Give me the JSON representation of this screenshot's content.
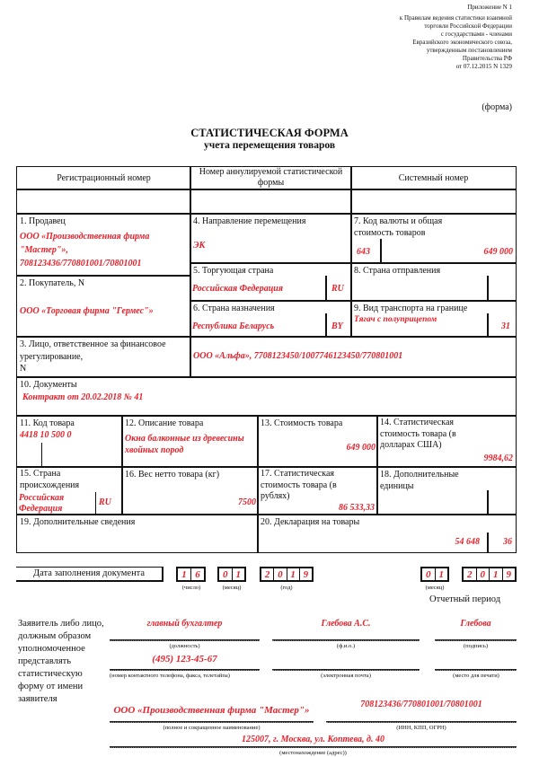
{
  "header": {
    "lines": [
      "Приложение N 1",
      "к Правилам ведения статистики взаимной",
      "торговли Российской Федерации",
      "с государствами - членами",
      "Евразийского экономического союза,",
      "утвержденным постановлением",
      "Правительства РФ",
      "от 07.12.2015 N 1329"
    ],
    "form_label": "(форма)"
  },
  "title": "СТАТИСТИЧЕСКАЯ ФОРМА",
  "subtitle": "учета перемещения товаров",
  "table": {
    "reg_number": "Регистрационный номер",
    "annul_number": "Номер аннулируемой статистической формы",
    "system_number": "Системный номер",
    "f1": {
      "label": "1. Продавец",
      "value": "ООО «Производственная фирма \"Мастер\"», 708123436/770801001/70801001"
    },
    "f2": {
      "label": "2. Покупатель, N",
      "value": "ООО «Торговая фирма \"Гермес\"»"
    },
    "f3": {
      "label": "3. Лицо, ответственное за финансовое урегулирование,",
      "label2": "N",
      "value": "ООО «Альфа», 7708123450/1007746123450/770801001"
    },
    "f4": {
      "label": "4. Направление перемещения",
      "value": "ЭК"
    },
    "f5": {
      "label": "5. Торгующая страна",
      "value": "Российская Федерация",
      "code": "RU"
    },
    "f6": {
      "label": "6. Страна назначения",
      "value": "Республика Беларусь",
      "code": "BY"
    },
    "f7": {
      "label": "7. Код валюты и общая стоимость товаров",
      "currency": "643",
      "value": "649 000"
    },
    "f8": {
      "label": "8. Страна отправления"
    },
    "f9": {
      "label": "9. Вид транспорта на границе",
      "value": "Тягач с полуприцепом",
      "code": "31"
    },
    "f10": {
      "label": "10. Документы",
      "value": "Контракт от 20.02.2018 № 41"
    },
    "f11": {
      "label": "11. Код товара",
      "value": "4418 10 500 0"
    },
    "f12": {
      "label": "12. Описание товара",
      "value": "Окна балконные из древесины хвойных пород"
    },
    "f13": {
      "label": "13. Стоимость товара",
      "value": "649 000"
    },
    "f14": {
      "label": "14. Статистическая стоимость товара (в долларах США)",
      "value": "9984,62"
    },
    "f15": {
      "label": "15. Страна происхождения",
      "value": "Российская Федерация",
      "code": "RU"
    },
    "f16": {
      "label": "16. Вес нетто товара (кг)",
      "value": "7500"
    },
    "f17": {
      "label": "17. Статистическая стоимость товара (в рублях)",
      "value": "86 533,33"
    },
    "f18": {
      "label": "18. Дополнительные единицы"
    },
    "f19": {
      "label": "19. Дополнительные сведения"
    },
    "f20": {
      "label": "20. Декларация на товары",
      "value": "54 648",
      "code": "36"
    }
  },
  "date": {
    "label": "Дата заполнения документа",
    "day": [
      "1",
      "6"
    ],
    "month": [
      "0",
      "1"
    ],
    "year": [
      "2",
      "0",
      "1",
      "9"
    ],
    "day_caption": "(число)",
    "month_caption": "(месяц)",
    "year_caption": "(год)"
  },
  "period": {
    "month": [
      "0",
      "1"
    ],
    "year": [
      "2",
      "0",
      "1",
      "9"
    ],
    "month_caption": "(месяц)",
    "label": "Отчетный период"
  },
  "applicant": {
    "label": "Заявитель либо лицо, должным образом уполномоченное представлять статистическую форму от имени заявителя",
    "position": "главный бухгалтер",
    "position_caption": "(должность)",
    "name": "Глебова А.С.",
    "name_caption": "(ф.и.о.)",
    "signature": "Глебова",
    "signature_caption": "(подпись)",
    "phone": "(495) 123-45-67",
    "phone_caption": "(номер контактного телефона, факса, телетайпа)",
    "email_caption": "(электронная почта)",
    "stamp_caption": "(место для печати)",
    "org": "ООО «Производственная фирма \"Мастер\"»",
    "org_caption": "(полное и сокращенное наименование)",
    "ids": "708123436/770801001/70801001",
    "ids_caption": "(ИНН, КПП, ОГРН)",
    "address": "125007, г. Москва, ул. Коптева, д. 40",
    "address_caption": "(местонахождение (адрес))"
  }
}
